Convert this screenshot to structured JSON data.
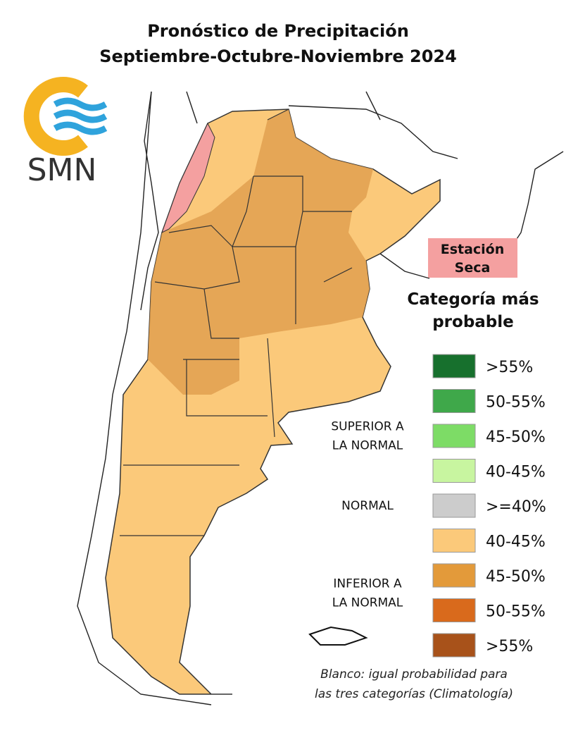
{
  "title": [
    "Pronóstico de Precipitación",
    "Septiembre-Octubre-Noviembre 2024"
  ],
  "logo_text": "SMN",
  "dry_season_label": [
    "Estación",
    "Seca"
  ],
  "legend": {
    "title": [
      "Categoría más",
      "probable"
    ],
    "groups": [
      {
        "label": [
          "SUPERIOR A",
          "LA NORMAL"
        ]
      },
      {
        "label": [
          "NORMAL"
        ]
      },
      {
        "label": [
          "INFERIOR A",
          "LA NORMAL"
        ]
      }
    ],
    "items": [
      {
        "label": ">55%",
        "color": "#17702d"
      },
      {
        "label": "50-55%",
        "color": "#3fa84a"
      },
      {
        "label": "45-50%",
        "color": "#7ddc66"
      },
      {
        "label": "40-45%",
        "color": "#c8f5a0"
      },
      {
        "label": ">=40%",
        "color": "#cccccc"
      },
      {
        "label": "40-45%",
        "color": "#fbc97a"
      },
      {
        "label": "45-50%",
        "color": "#e39a3a"
      },
      {
        "label": "50-55%",
        "color": "#d96a1c"
      },
      {
        "label": ">55%",
        "color": "#a8521a"
      }
    ]
  },
  "note": [
    "Blanco: igual probabilidad para",
    "las tres categorías (Climatología)"
  ]
}
